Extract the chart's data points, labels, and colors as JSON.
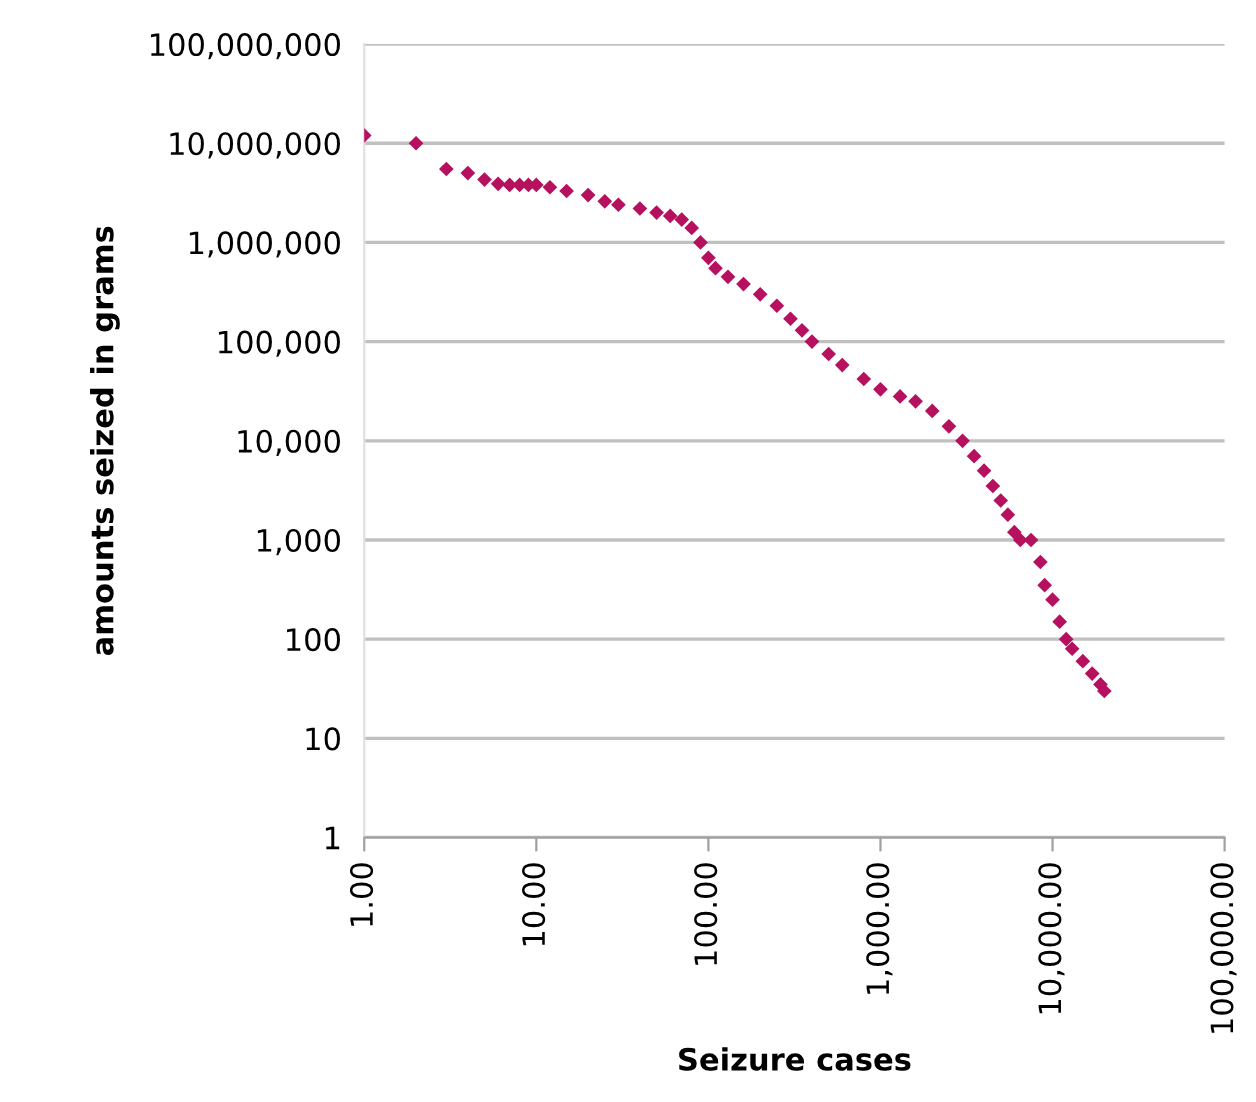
{
  "chart_data": {
    "type": "scatter",
    "xlabel": "Seizure cases",
    "ylabel": "amounts seized in grams",
    "log": "xy",
    "grid": "y",
    "marker": "diamond",
    "xlim": [
      1,
      100000
    ],
    "ylim": [
      1,
      100000000
    ],
    "xticks": [
      {
        "value": 1,
        "label": "1.00"
      },
      {
        "value": 10,
        "label": "10.00"
      },
      {
        "value": 100,
        "label": "100.00"
      },
      {
        "value": 1000,
        "label": "1,000.00"
      },
      {
        "value": 10000,
        "label": "10,000.00"
      },
      {
        "value": 100000,
        "label": "100,000.00"
      }
    ],
    "yticks": [
      1,
      10,
      100,
      {
        "value": 1000,
        "label": "1,000"
      },
      {
        "value": 10000,
        "label": "10,000"
      },
      {
        "value": 100000,
        "label": "100,000"
      },
      {
        "value": 1000000,
        "label": "1,000,000"
      },
      {
        "value": 10000000,
        "label": "10,000,000"
      },
      {
        "value": 100000000,
        "label": "100,000,000"
      }
    ],
    "series": [
      {
        "color": "#b5115e",
        "x": [
          1,
          2,
          3,
          4,
          5,
          6,
          7,
          8,
          9,
          10,
          12,
          15,
          20,
          25,
          30,
          40,
          50,
          60,
          70,
          80,
          90,
          100,
          110,
          130,
          160,
          200,
          250,
          300,
          350,
          400,
          500,
          600,
          800,
          1000,
          1300,
          1600,
          2000,
          2500,
          3000,
          3500,
          4000,
          4500,
          5000,
          5500,
          6000,
          6500,
          7500,
          8500,
          9000,
          10000,
          11000,
          12000,
          13000,
          15000,
          17000,
          19000,
          20000
        ],
        "values": [
          12000000,
          10000000,
          5500000,
          5000000,
          4300000,
          3900000,
          3800000,
          3800000,
          3800000,
          3800000,
          3600000,
          3300000,
          3000000,
          2600000,
          2400000,
          2200000,
          2000000,
          1850000,
          1700000,
          1400000,
          1000000,
          700000,
          550000,
          450000,
          380000,
          300000,
          230000,
          170000,
          130000,
          100000,
          75000,
          58000,
          42000,
          33000,
          28000,
          25000,
          20000,
          14000,
          10000,
          7000,
          5000,
          3500,
          2500,
          1800,
          1200,
          1000,
          1000,
          600,
          350,
          250,
          150,
          100,
          80,
          60,
          45,
          35,
          30
        ]
      }
    ]
  }
}
